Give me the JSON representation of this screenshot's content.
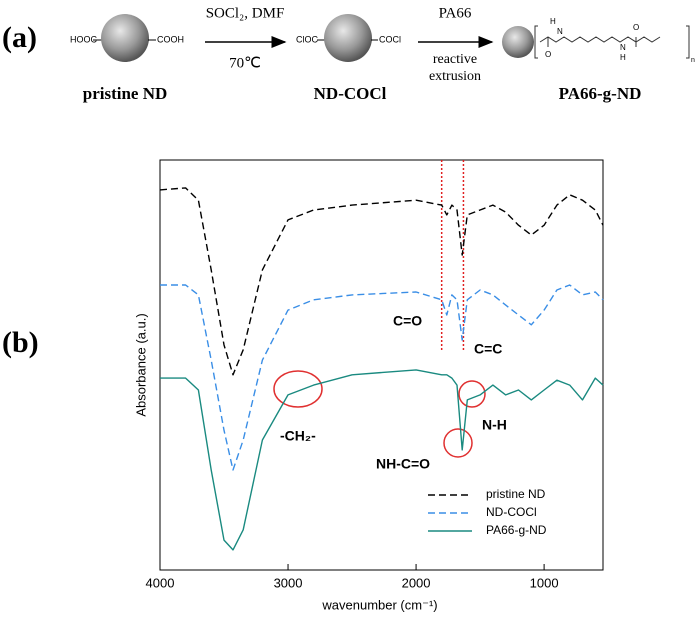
{
  "panel_labels": [
    "(a)",
    "(b)"
  ],
  "scheme": {
    "pristine": {
      "left_group": "HOOC",
      "right_group": "COOH",
      "name": "pristine ND"
    },
    "step1": {
      "reagents": "SOCl₂, DMF",
      "condition": "70℃"
    },
    "acyl": {
      "left_group": "ClOC",
      "right_group": "COCl",
      "name": "ND-COCl"
    },
    "step2": {
      "reagent": "PA66",
      "condition_line1": "reactive",
      "condition_line2": "extrusion"
    },
    "product": {
      "name": "PA66-g-ND",
      "atoms": [
        "H",
        "N",
        "O",
        "N",
        "H",
        "O",
        "n"
      ]
    }
  },
  "chart_data": {
    "type": "line",
    "xlabel": "wavenumber (cm⁻¹)",
    "ylabel": "Absorbance (a.u.)",
    "xlim": [
      4000,
      540
    ],
    "ylim": [
      0,
      10
    ],
    "xticks": [
      4000,
      3000,
      2000,
      1000
    ],
    "x": [
      4000,
      3800,
      3700,
      3600,
      3500,
      3430,
      3350,
      3200,
      3000,
      2800,
      2500,
      2000,
      1800,
      1760,
      1720,
      1680,
      1640,
      1600,
      1500,
      1400,
      1300,
      1200,
      1100,
      1000,
      900,
      800,
      700,
      600,
      540
    ],
    "series": [
      {
        "name": "pristine ND",
        "color": "#000000",
        "line_style": "dashed",
        "values": [
          9.27,
          9.32,
          9.02,
          7.32,
          5.49,
          4.76,
          5.37,
          7.32,
          8.54,
          8.78,
          8.9,
          9.02,
          8.9,
          8.66,
          8.9,
          8.78,
          7.68,
          8.66,
          8.78,
          8.9,
          8.73,
          8.41,
          8.17,
          8.41,
          8.9,
          9.15,
          9.02,
          8.78,
          8.41
        ]
      },
      {
        "name": "ND-COCl",
        "color": "#3a8ee6",
        "line_style": "dashed",
        "values": [
          6.95,
          6.95,
          6.71,
          5.12,
          3.41,
          2.44,
          3.17,
          5.12,
          6.34,
          6.59,
          6.71,
          6.78,
          6.59,
          6.22,
          6.71,
          6.59,
          5.61,
          6.59,
          6.83,
          6.71,
          6.46,
          6.22,
          5.98,
          6.34,
          6.83,
          6.95,
          6.71,
          6.78,
          6.59
        ]
      },
      {
        "name": "PA66-g-ND",
        "color": "#1a8a80",
        "line_style": "solid",
        "values": [
          4.68,
          4.68,
          4.39,
          2.44,
          0.73,
          0.49,
          0.98,
          3.17,
          4.27,
          4.51,
          4.76,
          4.88,
          4.76,
          4.76,
          4.68,
          4.51,
          2.93,
          4.15,
          4.27,
          4.51,
          4.27,
          4.39,
          4.15,
          4.39,
          4.63,
          4.51,
          4.15,
          4.68,
          4.51
        ]
      }
    ],
    "reference_lines": {
      "values": [
        1800,
        1630
      ],
      "color": "#e02020"
    },
    "annotations": [
      "C=O",
      "C=C",
      "-CH₂-",
      "NH-C=O",
      "N-H"
    ],
    "legend": "lower right"
  }
}
